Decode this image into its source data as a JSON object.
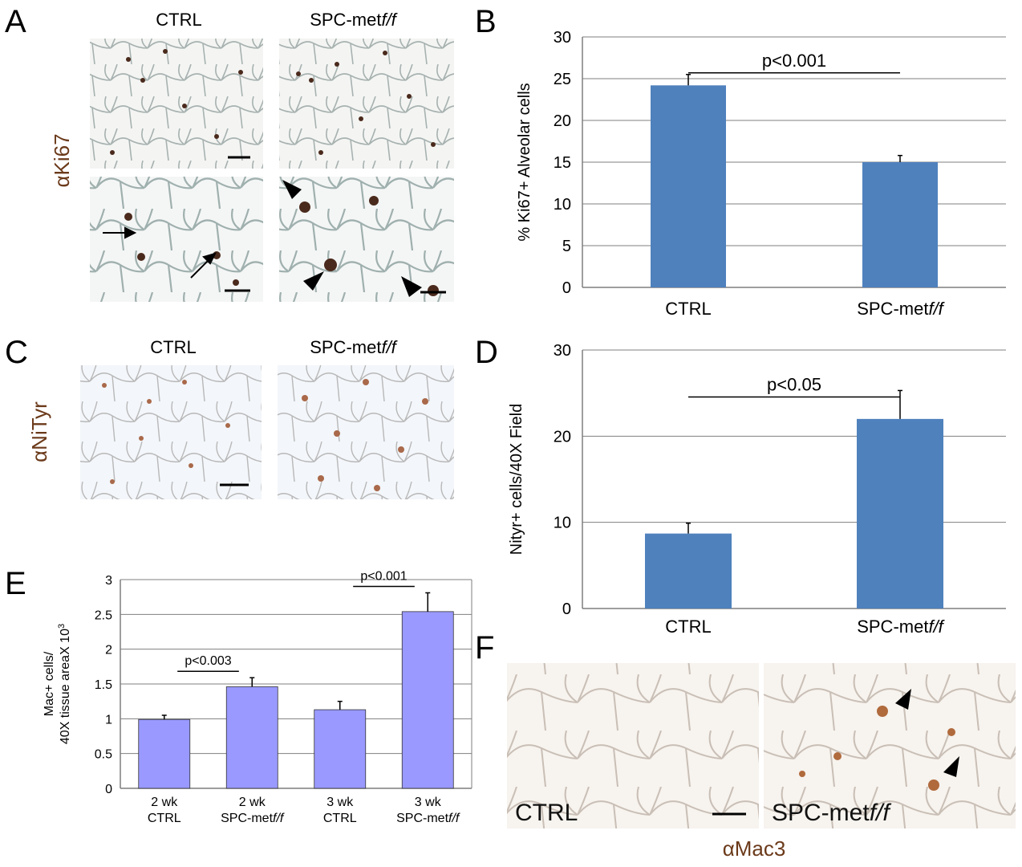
{
  "panels": {
    "A": "A",
    "B": "B",
    "C": "C",
    "D": "D",
    "E": "E",
    "F": "F"
  },
  "micrographs": {
    "A": {
      "ctrl_label": "CTRL",
      "mut_label_prefix": "SPC-met",
      "mut_label_italic": "f/f",
      "stain": "αKi67"
    },
    "C": {
      "ctrl_label": "CTRL",
      "mut_label_prefix": "SPC-met",
      "mut_label_italic": "f/f",
      "stain": "αNiTyr"
    },
    "F": {
      "ctrl_label": "CTRL",
      "mut_label_prefix": "SPC-met",
      "mut_label_italic": "f/f",
      "stain": "αMac3"
    }
  },
  "chart_data": [
    {
      "panel": "B",
      "type": "bar",
      "categories": [
        "CTRL",
        "SPC-metf/f"
      ],
      "category_labels": [
        {
          "prefix": "CTRL",
          "italic": ""
        },
        {
          "prefix": "SPC-met",
          "italic": "f/f"
        }
      ],
      "values": [
        24.2,
        15.0
      ],
      "errors": [
        1.3,
        0.8
      ],
      "ylabel": "% Ki67+ Alveolar cells",
      "ylim": [
        0,
        30
      ],
      "yticks": [
        0,
        5,
        10,
        15,
        20,
        25,
        30
      ],
      "grid": true,
      "bar_color": "#4f81bd",
      "significance": {
        "text": "p<0.001",
        "between": [
          0,
          1
        ]
      }
    },
    {
      "panel": "D",
      "type": "bar",
      "categories": [
        "CTRL",
        "SPC-metf/f"
      ],
      "category_labels": [
        {
          "prefix": "CTRL",
          "italic": ""
        },
        {
          "prefix": "SPC-met",
          "italic": "f/f"
        }
      ],
      "values": [
        8.7,
        22.0
      ],
      "errors": [
        1.2,
        3.3
      ],
      "ylabel": "Nityr+ cells/40X Field",
      "ylim": [
        0,
        30
      ],
      "yticks": [
        0,
        10,
        20,
        30
      ],
      "grid": true,
      "bar_color": "#4f81bd",
      "significance": {
        "text": "p<0.05",
        "between": [
          0,
          1
        ]
      }
    },
    {
      "panel": "E",
      "type": "bar",
      "categories": [
        "2 wk CTRL",
        "2 wk SPC-metf/f",
        "3 wk CTRL",
        "3 wk SPC-metf/f"
      ],
      "category_labels": [
        {
          "line1": "2 wk",
          "prefix": "CTRL",
          "italic": ""
        },
        {
          "line1": "2 wk",
          "prefix": "SPC-met",
          "italic": "f/f"
        },
        {
          "line1": "3 wk",
          "prefix": "CTRL",
          "italic": ""
        },
        {
          "line1": "3 wk",
          "prefix": "SPC-met",
          "italic": "f/f"
        }
      ],
      "values": [
        0.99,
        1.46,
        1.13,
        2.54
      ],
      "errors": [
        0.06,
        0.13,
        0.12,
        0.27
      ],
      "ylabel_line1": "Mac+ cells/",
      "ylabel_line2": "40X tissue areaX 10",
      "ylabel_sup": "3",
      "ylim": [
        0,
        3
      ],
      "yticks": [
        0,
        0.5,
        1,
        1.5,
        2,
        2.5,
        3
      ],
      "grid": true,
      "bar_color": "#9999ff",
      "significance": [
        {
          "text": "p<0.003",
          "between": [
            0,
            1
          ]
        },
        {
          "text": "p<0.001",
          "between": [
            2,
            3
          ]
        }
      ]
    }
  ]
}
